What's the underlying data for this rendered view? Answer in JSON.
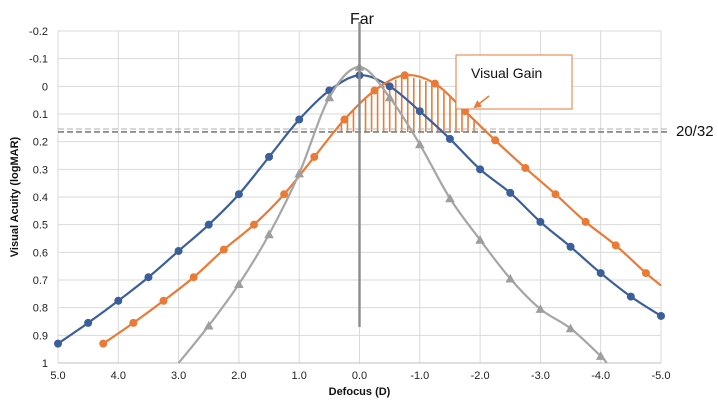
{
  "chart_data": {
    "type": "line",
    "xlabel": "Defocus (D)",
    "ylabel": "Visual Acuity (logMAR)",
    "xlim": [
      5.0,
      -5.0
    ],
    "ylim": [
      -0.2,
      1.0
    ],
    "y_inverted": true,
    "grid": true,
    "x_ticks": [
      "5.0",
      "4.0",
      "3.0",
      "2.0",
      "1.0",
      "0.0",
      "-1.0",
      "-2.0",
      "-3.0",
      "-4.0",
      "-5.0"
    ],
    "y_ticks": [
      "-0.2",
      "-0.1",
      "0",
      "0.1",
      "0.2",
      "0.3",
      "0.4",
      "0.5",
      "0.6",
      "0.7",
      "0.8",
      "0.9",
      "1"
    ],
    "series": [
      {
        "color": "#3b5f9a",
        "marker": "circle",
        "x": [
          5.0,
          4.5,
          4.0,
          3.5,
          3.0,
          2.5,
          2.0,
          1.5,
          1.0,
          0.5,
          0.0,
          -0.5,
          -1.0,
          -1.5,
          -2.0,
          -2.5,
          -3.0,
          -3.5,
          -4.0,
          -4.5,
          -5.0
        ],
        "y": [
          0.93,
          0.855,
          0.775,
          0.69,
          0.595,
          0.5,
          0.39,
          0.255,
          0.12,
          0.015,
          -0.04,
          0.0,
          0.09,
          0.19,
          0.3,
          0.385,
          0.49,
          0.58,
          0.675,
          0.76,
          0.83
        ]
      },
      {
        "color": "#ea7a36",
        "marker": "circle",
        "x": [
          4.25,
          3.75,
          3.25,
          2.75,
          2.25,
          1.75,
          1.25,
          0.75,
          0.25,
          -0.25,
          -0.75,
          -1.25,
          -1.75,
          -2.25,
          -2.75,
          -3.25,
          -3.75,
          -4.25,
          -4.75
        ],
        "y": [
          0.93,
          0.855,
          0.775,
          0.69,
          0.59,
          0.5,
          0.39,
          0.255,
          0.12,
          0.015,
          -0.04,
          -0.01,
          0.09,
          0.195,
          0.295,
          0.39,
          0.49,
          0.575,
          0.675
        ]
      },
      {
        "color": "#a6a6a6",
        "marker": "triangle",
        "x": [
          2.5,
          2.0,
          1.5,
          1.0,
          0.5,
          0.0,
          -0.5,
          -1.0,
          -1.5,
          -2.0,
          -2.5,
          -3.0,
          -3.5,
          -4.0
        ],
        "y": [
          0.865,
          0.715,
          0.535,
          0.315,
          0.04,
          -0.07,
          0.04,
          0.21,
          0.405,
          0.555,
          0.695,
          0.805,
          0.875,
          0.975
        ]
      }
    ],
    "reference_line": {
      "y": 0.165,
      "label": "20/32"
    },
    "vertical_line": {
      "x": 0.0,
      "label": "Far"
    },
    "annotation": {
      "text": "Visual Gain"
    }
  }
}
